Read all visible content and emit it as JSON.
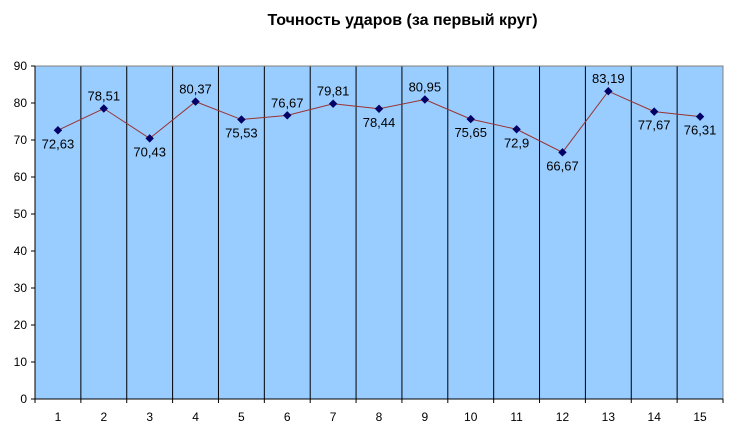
{
  "chart_data": {
    "type": "line",
    "title": "Точность ударов (за первый круг)",
    "xlabel": "",
    "ylabel": "",
    "categories": [
      "1",
      "2",
      "3",
      "4",
      "5",
      "6",
      "7",
      "8",
      "9",
      "10",
      "11",
      "12",
      "13",
      "14",
      "15"
    ],
    "series": [
      {
        "values": [
          72.63,
          78.51,
          70.43,
          80.37,
          75.53,
          76.67,
          79.81,
          78.44,
          80.95,
          75.65,
          72.9,
          66.67,
          83.19,
          77.67,
          76.31
        ],
        "labels": [
          "72,63",
          "78,51",
          "70,43",
          "80,37",
          "75,53",
          "76,67",
          "79,81",
          "78,44",
          "80,95",
          "75,65",
          "72,9",
          "66,67",
          "83,19",
          "77,67",
          "76,31"
        ]
      }
    ],
    "ylim": [
      0,
      90
    ],
    "yticks": [
      "0",
      "10",
      "20",
      "30",
      "40",
      "50",
      "60",
      "70",
      "80",
      "90"
    ],
    "grid": "vertical",
    "legend": "none",
    "colors": {
      "plot_background": "#99CCFF",
      "line": "#993333",
      "marker": "#000066",
      "grid": "#000000"
    }
  }
}
